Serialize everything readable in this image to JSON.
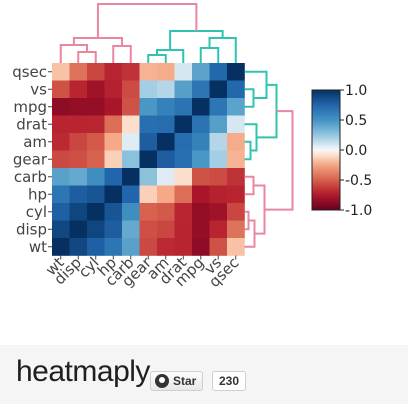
{
  "chart_data": {
    "type": "heatmap",
    "title": "",
    "xlabel": "",
    "ylabel": "",
    "rows": [
      "qsec",
      "vs",
      "mpg",
      "drat",
      "am",
      "gear",
      "carb",
      "hp",
      "cyl",
      "disp",
      "wt"
    ],
    "cols": [
      "wt",
      "disp",
      "cyl",
      "hp",
      "carb",
      "gear",
      "am",
      "drat",
      "mpg",
      "vs",
      "qsec"
    ],
    "values": [
      [
        -0.17,
        -0.43,
        -0.59,
        -0.71,
        -0.66,
        -0.21,
        -0.23,
        0.09,
        0.42,
        0.74,
        1.0
      ],
      [
        -0.55,
        -0.71,
        -0.81,
        -0.72,
        -0.57,
        0.21,
        0.17,
        0.44,
        0.66,
        1.0,
        0.74
      ],
      [
        -0.87,
        -0.85,
        -0.85,
        -0.78,
        -0.55,
        0.48,
        0.6,
        0.68,
        1.0,
        0.66,
        0.42
      ],
      [
        -0.71,
        -0.71,
        -0.7,
        -0.45,
        -0.09,
        0.7,
        0.71,
        1.0,
        0.68,
        0.44,
        0.09
      ],
      [
        -0.69,
        -0.59,
        -0.52,
        -0.24,
        0.06,
        0.79,
        1.0,
        0.71,
        0.6,
        0.17,
        -0.23
      ],
      [
        -0.58,
        -0.56,
        -0.49,
        -0.13,
        0.27,
        1.0,
        0.79,
        0.7,
        0.48,
        0.21,
        -0.21
      ],
      [
        0.43,
        0.39,
        0.53,
        0.75,
        1.0,
        0.27,
        0.06,
        -0.09,
        -0.55,
        -0.57,
        -0.66
      ],
      [
        0.66,
        0.79,
        0.83,
        1.0,
        0.75,
        -0.13,
        -0.24,
        -0.45,
        -0.78,
        -0.72,
        -0.71
      ],
      [
        0.78,
        0.9,
        1.0,
        0.83,
        0.53,
        -0.49,
        -0.52,
        -0.7,
        -0.85,
        -0.81,
        -0.59
      ],
      [
        0.89,
        1.0,
        0.9,
        0.79,
        0.39,
        -0.56,
        -0.59,
        -0.71,
        -0.85,
        -0.71,
        -0.43
      ],
      [
        1.0,
        0.89,
        0.78,
        0.66,
        0.43,
        -0.58,
        -0.69,
        -0.71,
        -0.87,
        -0.55,
        -0.17
      ]
    ],
    "color_range": [
      -1,
      1
    ],
    "colorbar_ticks": [
      "1.0",
      "0.5",
      "0.0",
      "-0.5",
      "-1.0"
    ],
    "colorbar_tick_values": [
      1.0,
      0.5,
      0.0,
      -0.5,
      -1.0
    ],
    "dendrogram_colors": {
      "group_a": "#e8879f",
      "group_b": "#2ec4b0"
    },
    "colors": {
      "low": "#67001f",
      "mid": "#f7f7f7",
      "high": "#053061"
    }
  },
  "footer": {
    "brand": "heatmaply",
    "star_label": "Star",
    "star_count": "230",
    "icon": "github-icon"
  }
}
